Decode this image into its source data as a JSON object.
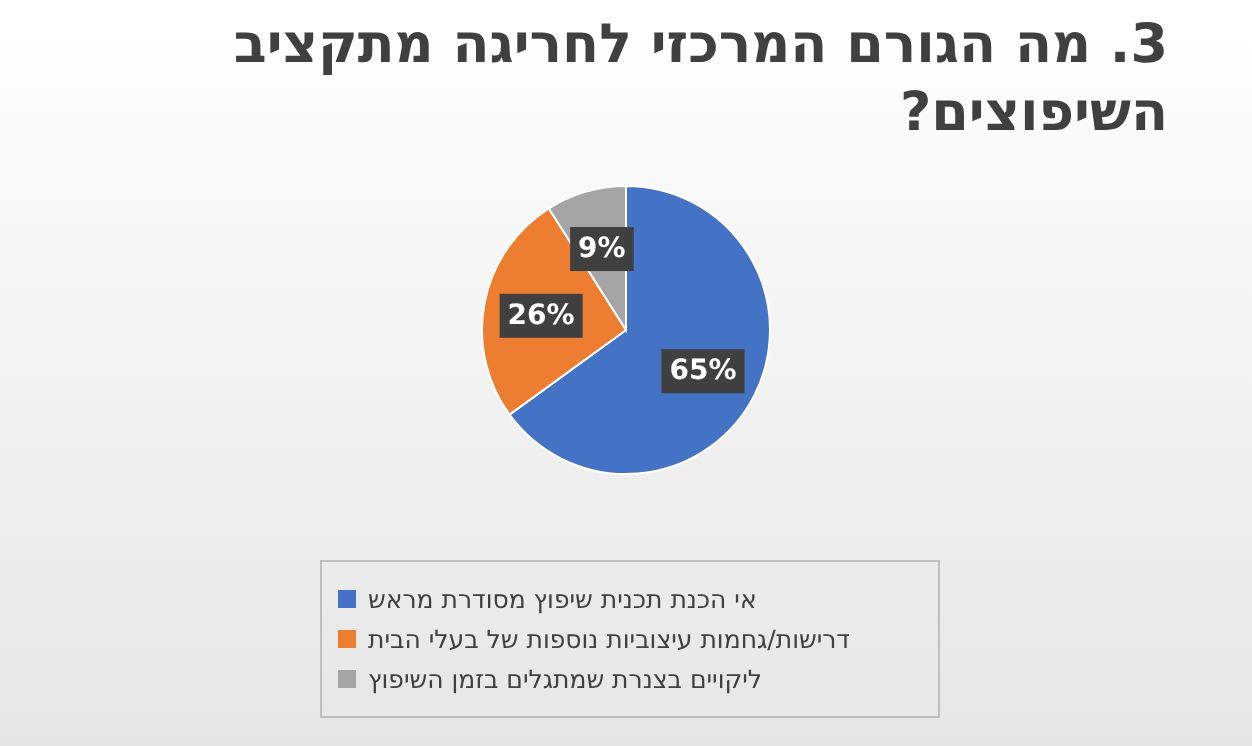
{
  "chart_data": {
    "type": "pie",
    "title": "3. מה הגורם המרכזי לחריגה מתקציב השיפוצים?",
    "categories": [
      "אי הכנת תכנית שיפוץ מסודרת מראש",
      "דרישות/גחמות עיצוביות נוספות של בעלי הבית",
      "ליקויים בצנרת שמתגלים בזמן השיפוץ"
    ],
    "values": [
      65,
      26,
      9
    ],
    "colors": [
      "#4472c4",
      "#ed7d31",
      "#a5a5a5"
    ],
    "value_labels": [
      "65%",
      "26%",
      "9%"
    ],
    "legend": "bottom"
  }
}
